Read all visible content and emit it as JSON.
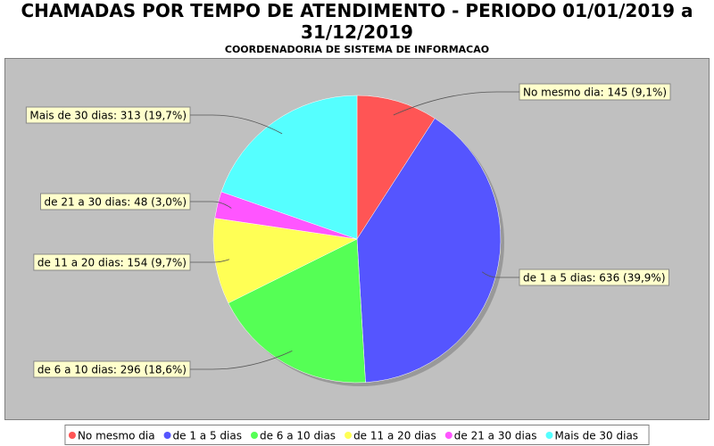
{
  "chart_data": {
    "type": "pie",
    "title": "CHAMADAS POR TEMPO DE ATENDIMENTO - PERIODO 01/01/2019 a 31/12/2019",
    "subtitle": "COORDENADORIA DE SISTEMA DE INFORMACAO",
    "categories": [
      "No mesmo dia",
      "de 1 a 5 dias",
      "de 6 a 10 dias",
      "de 11 a 20 dias",
      "de 21 a 30 dias",
      "Mais de 30 dias"
    ],
    "values": [
      145,
      636,
      296,
      154,
      48,
      313
    ],
    "value_labels": [
      "No mesmo dia: 145 (9,1%)",
      "de 1 a 5 dias: 636 (39,9%)",
      "de 6 a 10 dias: 296 (18,6%)",
      "de 11 a 20 dias: 154 (9,7%)",
      "de 21 a 30 dias: 48 (3,0%)",
      "Mais de 30 dias: 313 (19,7%)"
    ],
    "colors": [
      "#ff5555",
      "#5555ff",
      "#55ff55",
      "#ffff55",
      "#ff55ff",
      "#55ffff"
    ],
    "legend": "bottom"
  }
}
